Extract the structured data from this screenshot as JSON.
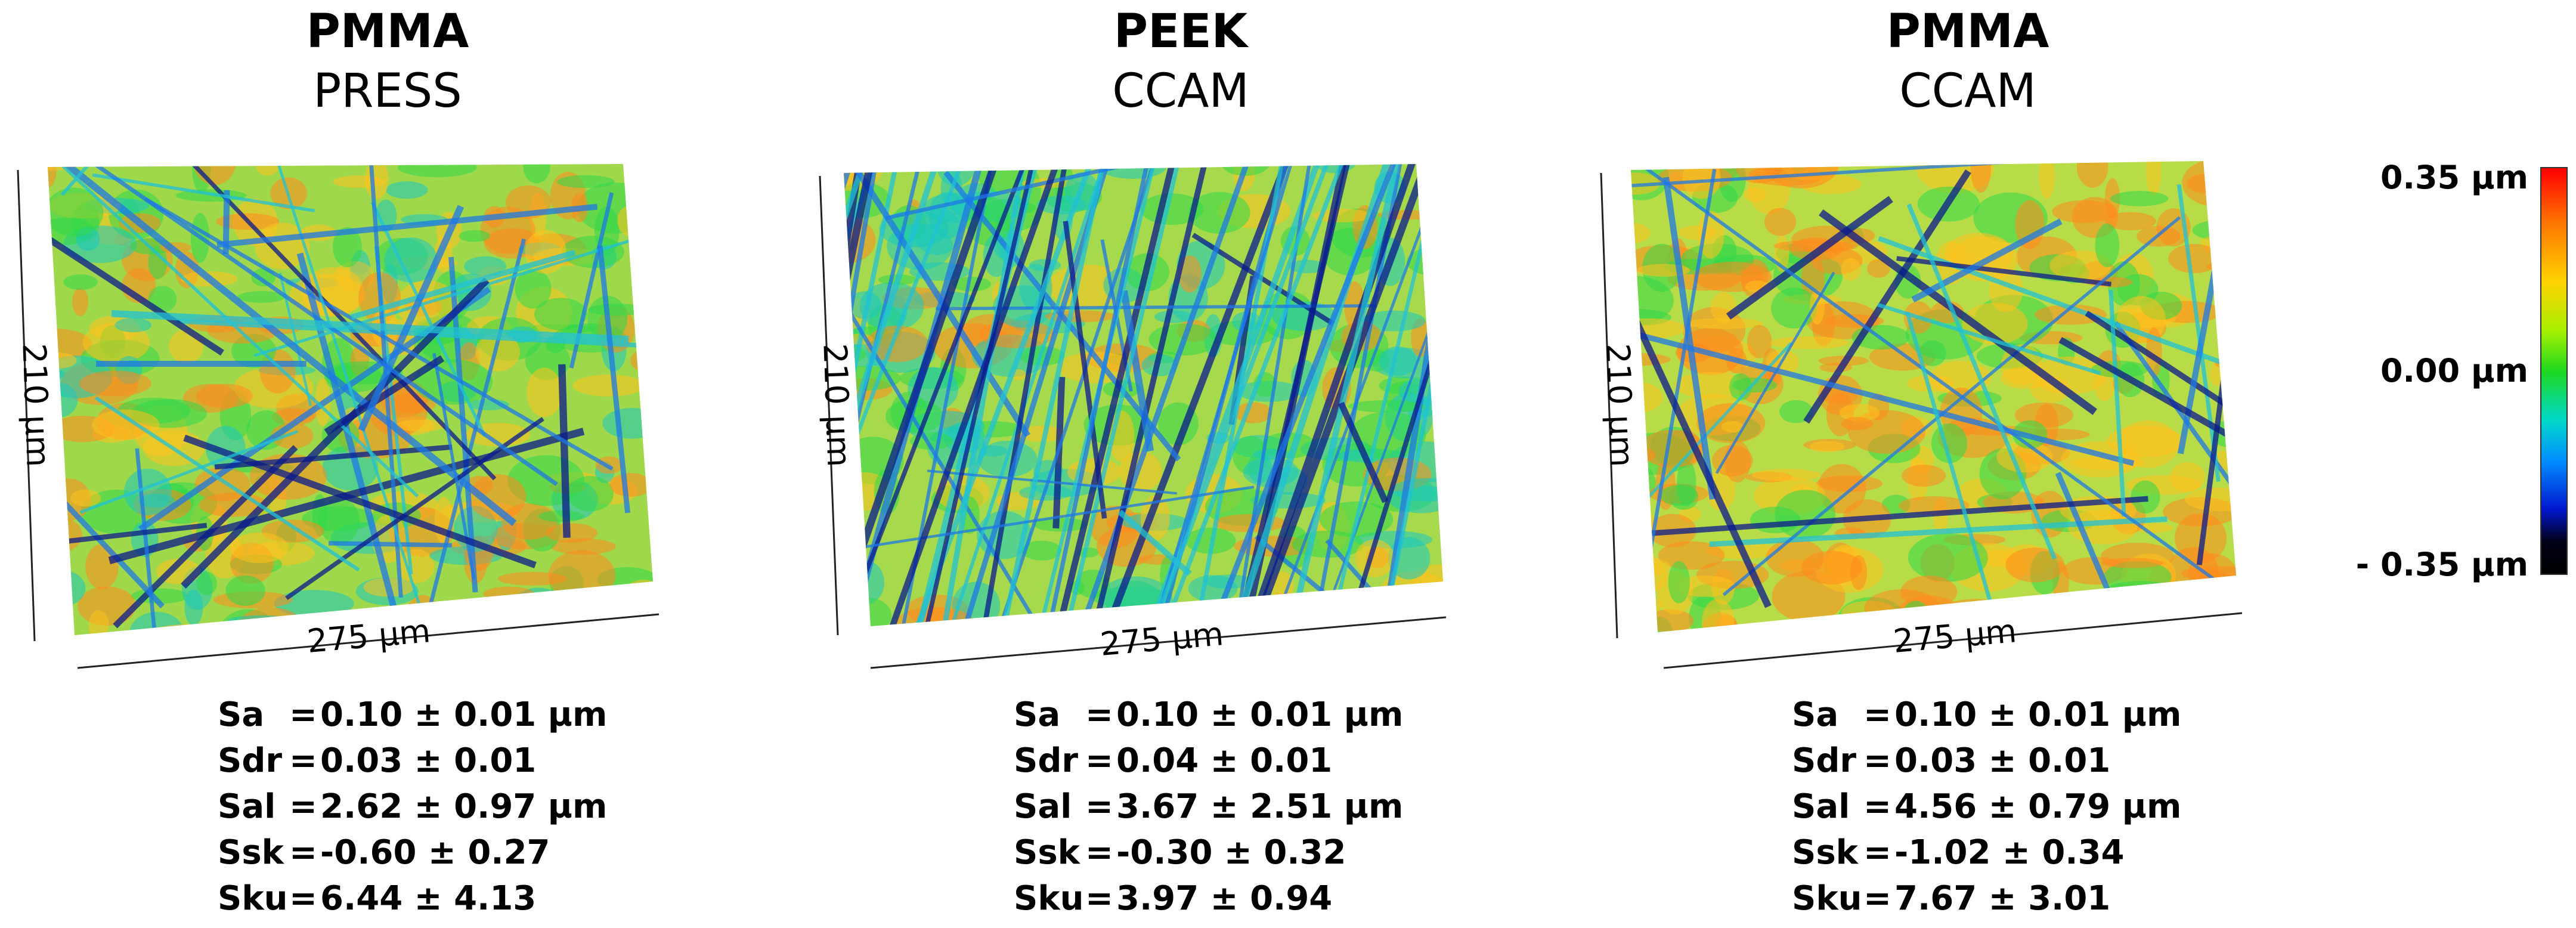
{
  "panels": [
    {
      "material": "PMMA",
      "method": "PRESS",
      "x_label": "275 µm",
      "y_label": "210 µm",
      "params": [
        {
          "name": "Sa",
          "value": "0.10 ± 0.01 µm"
        },
        {
          "name": "Sdr",
          "value": "0.03 ± 0.01"
        },
        {
          "name": "Sal",
          "value": "2.62 ± 0.97 µm"
        },
        {
          "name": "Ssk",
          "value": "-0.60 ± 0.27"
        },
        {
          "name": "Sku",
          "value": "6.44 ± 4.13"
        }
      ]
    },
    {
      "material": "PEEK",
      "method": "CCAM",
      "x_label": "275 µm",
      "y_label": "210 µm",
      "params": [
        {
          "name": "Sa",
          "value": "0.10 ± 0.01 µm"
        },
        {
          "name": "Sdr",
          "value": "0.04 ± 0.01"
        },
        {
          "name": "Sal",
          "value": "3.67 ± 2.51 µm"
        },
        {
          "name": "Ssk",
          "value": "-0.30 ± 0.32"
        },
        {
          "name": "Sku",
          "value": "3.97 ± 0.94"
        }
      ]
    },
    {
      "material": "PMMA",
      "method": "CCAM",
      "x_label": "275 µm",
      "y_label": "210 µm",
      "params": [
        {
          "name": "Sa",
          "value": "0.10 ± 0.01 µm"
        },
        {
          "name": "Sdr",
          "value": "0.03 ± 0.01"
        },
        {
          "name": "Sal",
          "value": "4.56 ± 0.79 µm"
        },
        {
          "name": "Ssk",
          "value": "-1.02 ± 0.34"
        },
        {
          "name": "Sku",
          "value": "7.67 ± 3.01"
        }
      ]
    }
  ],
  "scale": {
    "max_label": "0.35 µm",
    "mid_label": "0.00 µm",
    "min_label": "- 0.35 µm",
    "colors": [
      "#ff0000",
      "#ffd200",
      "#1fd81f",
      "#00d8c8",
      "#0018d0",
      "#000000"
    ]
  }
}
